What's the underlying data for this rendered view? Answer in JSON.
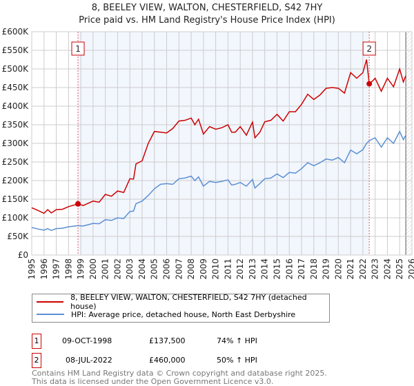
{
  "chart_data": {
    "type": "line",
    "title": "8, BEELEY VIEW, WALTON, CHESTERFIELD, S42 7HY",
    "subtitle": "Price paid vs. HM Land Registry's House Price Index (HPI)",
    "xlim": [
      1995,
      2026
    ],
    "ylim": [
      0,
      600000
    ],
    "y_ticks": [
      {
        "v": 0,
        "label": "£0"
      },
      {
        "v": 50000,
        "label": "£50K"
      },
      {
        "v": 100000,
        "label": "£100K"
      },
      {
        "v": 150000,
        "label": "£150K"
      },
      {
        "v": 200000,
        "label": "£200K"
      },
      {
        "v": 250000,
        "label": "£250K"
      },
      {
        "v": 300000,
        "label": "£300K"
      },
      {
        "v": 350000,
        "label": "£350K"
      },
      {
        "v": 400000,
        "label": "£400K"
      },
      {
        "v": 450000,
        "label": "£450K"
      },
      {
        "v": 500000,
        "label": "£500K"
      },
      {
        "v": 550000,
        "label": "£550K"
      },
      {
        "v": 600000,
        "label": "£600K"
      }
    ],
    "x_ticks": [
      "1995",
      "1996",
      "1997",
      "1998",
      "1999",
      "2000",
      "2001",
      "2002",
      "2003",
      "2004",
      "2005",
      "2006",
      "2007",
      "2008",
      "2009",
      "2010",
      "2011",
      "2012",
      "2013",
      "2014",
      "2015",
      "2016",
      "2017",
      "2018",
      "2019",
      "2020",
      "2021",
      "2022",
      "2023",
      "2024",
      "2025",
      "2026"
    ],
    "grid": true,
    "series": [
      {
        "name": "8, BEELEY VIEW, WALTON, CHESTERFIELD, S42 7HY (detached house)",
        "color": "#cc0000",
        "x": [
          1995,
          1995.5,
          1996,
          1996.3,
          1996.6,
          1997,
          1997.5,
          1998,
          1998.77,
          1999.2,
          2000,
          2000.5,
          2001,
          2001.5,
          2002,
          2002.5,
          2003,
          2003.3,
          2003.5,
          2004,
          2004.5,
          2005,
          2005.5,
          2006,
          2006.5,
          2007,
          2007.5,
          2008,
          2008.3,
          2008.6,
          2009,
          2009.5,
          2010,
          2010.5,
          2011,
          2011.3,
          2011.6,
          2012,
          2012.5,
          2013,
          2013.2,
          2013.6,
          2014,
          2014.5,
          2015,
          2015.5,
          2016,
          2016.5,
          2017,
          2017.5,
          2018,
          2018.5,
          2019,
          2019.5,
          2020,
          2020.5,
          2021,
          2021.5,
          2022,
          2022.3,
          2022.52,
          2022.8,
          2023,
          2023.5,
          2024,
          2024.5,
          2025,
          2025.3,
          2025.5
        ],
        "y": [
          127000,
          120000,
          112000,
          122000,
          113000,
          122000,
          123000,
          130000,
          137500,
          133000,
          145000,
          142000,
          163000,
          158000,
          172000,
          168000,
          205000,
          204000,
          245000,
          253000,
          300000,
          332000,
          330000,
          328000,
          340000,
          360000,
          362000,
          368000,
          350000,
          365000,
          325000,
          345000,
          338000,
          342000,
          350000,
          330000,
          330000,
          345000,
          322000,
          357000,
          315000,
          330000,
          358000,
          362000,
          378000,
          360000,
          385000,
          385000,
          405000,
          432000,
          418000,
          430000,
          448000,
          450000,
          448000,
          435000,
          490000,
          475000,
          490000,
          525000,
          460000,
          468000,
          475000,
          440000,
          475000,
          452000,
          500000,
          465000,
          482000
        ]
      },
      {
        "name": "HPI: Average price, detached house, North East Derbyshire",
        "color": "#5b8fd4",
        "x": [
          1995,
          1995.5,
          1996,
          1996.3,
          1996.6,
          1997,
          1997.5,
          1998,
          1998.77,
          1999.2,
          2000,
          2000.5,
          2001,
          2001.5,
          2002,
          2002.5,
          2003,
          2003.3,
          2003.5,
          2004,
          2004.5,
          2005,
          2005.5,
          2006,
          2006.5,
          2007,
          2007.5,
          2008,
          2008.3,
          2008.6,
          2009,
          2009.5,
          2010,
          2010.5,
          2011,
          2011.3,
          2011.6,
          2012,
          2012.5,
          2013,
          2013.2,
          2013.6,
          2014,
          2014.5,
          2015,
          2015.5,
          2016,
          2016.5,
          2017,
          2017.5,
          2018,
          2018.5,
          2019,
          2019.5,
          2020,
          2020.5,
          2021,
          2021.5,
          2022,
          2022.3,
          2022.52,
          2022.8,
          2023,
          2023.5,
          2024,
          2024.5,
          2025,
          2025.3,
          2025.5
        ],
        "y": [
          74000,
          70000,
          67000,
          71000,
          66000,
          71000,
          72000,
          76000,
          79000,
          78000,
          85000,
          84000,
          95000,
          93000,
          100000,
          98000,
          117000,
          118000,
          138000,
          145000,
          160000,
          178000,
          190000,
          192000,
          190000,
          205000,
          207000,
          212000,
          200000,
          210000,
          185000,
          198000,
          195000,
          198000,
          202000,
          188000,
          190000,
          195000,
          185000,
          203000,
          180000,
          192000,
          205000,
          207000,
          218000,
          208000,
          222000,
          220000,
          232000,
          248000,
          240000,
          248000,
          258000,
          255000,
          262000,
          248000,
          282000,
          272000,
          283000,
          300000,
          307000,
          312000,
          315000,
          290000,
          315000,
          300000,
          332000,
          310000,
          322000
        ]
      }
    ],
    "sales": [
      {
        "id": "1",
        "x": 1998.77,
        "y": 137500
      },
      {
        "id": "2",
        "x": 2022.52,
        "y": 460000
      }
    ],
    "annotations": [
      "1",
      "2"
    ]
  },
  "legend": {
    "items": [
      "8, BEELEY VIEW, WALTON, CHESTERFIELD, S42 7HY (detached house)",
      "HPI: Average price, detached house, North East Derbyshire"
    ]
  },
  "transactions": [
    {
      "id": "1",
      "date": "09-OCT-1998",
      "price": "£137,500",
      "hpi": "74% ↑ HPI"
    },
    {
      "id": "2",
      "date": "08-JUL-2022",
      "price": "£460,000",
      "hpi": "50% ↑ HPI"
    }
  ],
  "footer": {
    "line1": "Contains HM Land Registry data © Crown copyright and database right 2025.",
    "line2": "This data is licensed under the Open Government Licence v3.0."
  }
}
